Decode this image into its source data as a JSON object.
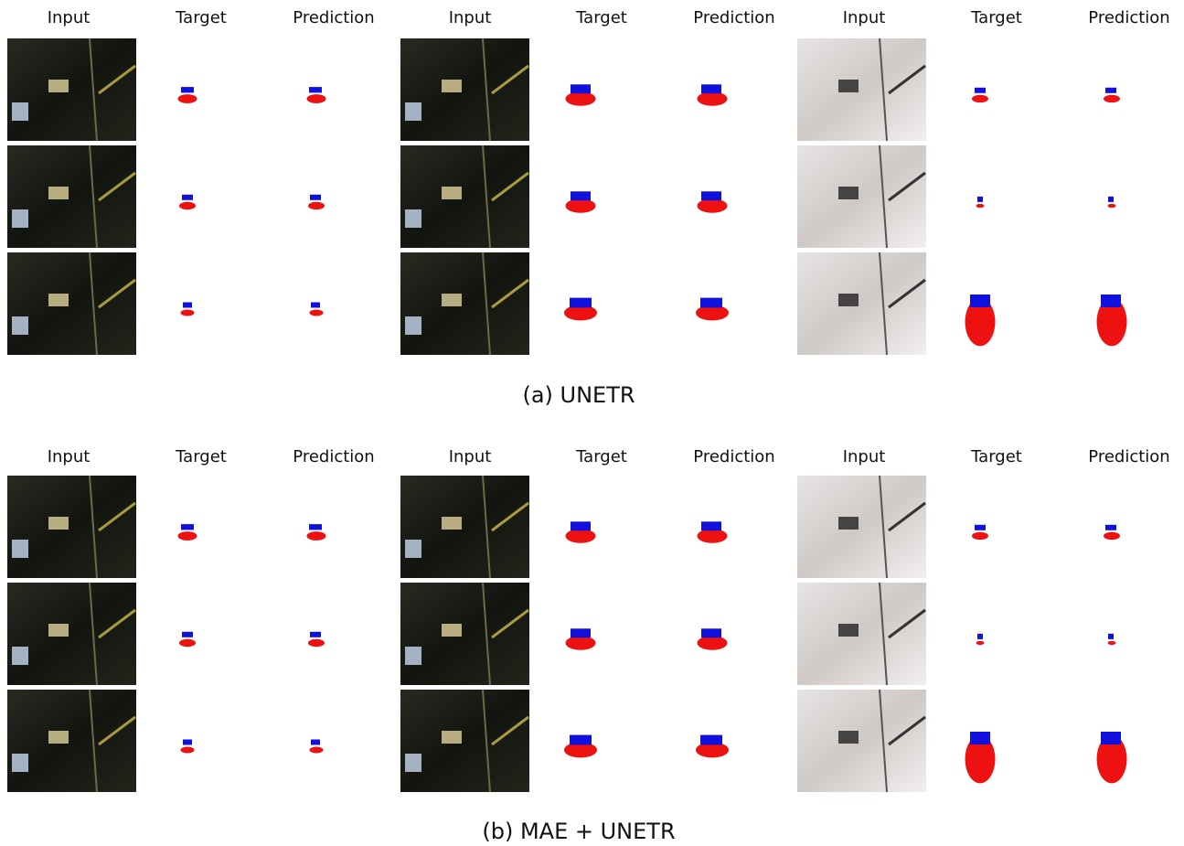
{
  "panels": [
    {
      "headers": [
        "Input",
        "Target",
        "Prediction",
        "Input",
        "Target",
        "Prediction",
        "Input",
        "Target",
        "Prediction"
      ],
      "caption": "(a)  UNETR"
    },
    {
      "headers": [
        "Input",
        "Target",
        "Prediction",
        "Input",
        "Target",
        "Prediction",
        "Input",
        "Target",
        "Prediction"
      ],
      "caption": "(b)  MAE + UNETR"
    }
  ]
}
